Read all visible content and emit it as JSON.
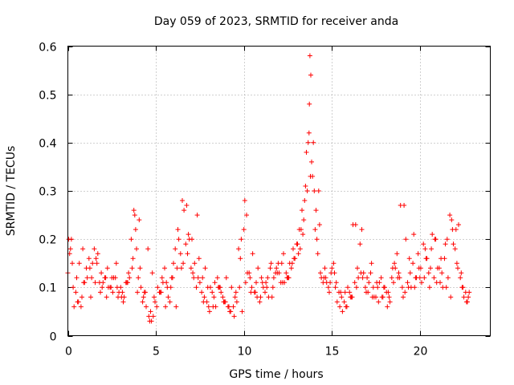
{
  "chart_data": {
    "type": "scatter",
    "title": "Day 059 of 2023, SRMTID for receiver anda",
    "xlabel": "GPS time / hours",
    "ylabel": "SRMTID / TECUs",
    "xlim": [
      0,
      24
    ],
    "ylim": [
      0,
      0.6
    ],
    "xticks": [
      0,
      5,
      10,
      15,
      20
    ],
    "xtick_labels": [
      "0",
      "5",
      "10",
      "15",
      "20"
    ],
    "yticks": [
      0,
      0.1,
      0.2,
      0.3,
      0.4,
      0.5,
      0.6
    ],
    "ytick_labels": [
      "0",
      "0.1",
      "0.2",
      "0.3",
      "0.4",
      "0.5",
      "0.6"
    ],
    "grid": true,
    "marker": "+",
    "color": "#ff0000",
    "series": [
      {
        "name": "SRMTID",
        "x": [
          0.0,
          0.15,
          0.3,
          0.45,
          0.6,
          0.75,
          0.9,
          1.05,
          1.2,
          1.35,
          1.5,
          1.65,
          1.8,
          1.95,
          2.1,
          2.25,
          2.4,
          2.55,
          2.7,
          2.85,
          3.0,
          3.15,
          3.3,
          3.45,
          3.6,
          3.75,
          3.8,
          3.9,
          4.0,
          4.15,
          4.3,
          4.45,
          4.6,
          4.75,
          4.9,
          5.05,
          5.2,
          5.35,
          5.5,
          5.65,
          5.8,
          5.95,
          6.1,
          6.25,
          6.4,
          6.55,
          6.7,
          6.85,
          7.0,
          7.15,
          7.3,
          7.45,
          7.6,
          7.75,
          7.9,
          8.05,
          8.2,
          8.35,
          8.5,
          8.65,
          8.8,
          8.95,
          9.1,
          9.25,
          9.4,
          9.55,
          9.7,
          9.85,
          10.0,
          10.15,
          10.3,
          10.45,
          10.6,
          10.75,
          10.9,
          11.05,
          11.2,
          11.35,
          11.5,
          11.65,
          11.8,
          11.95,
          12.1,
          12.25,
          12.4,
          12.55,
          12.7,
          12.85,
          13.0,
          13.15,
          13.3,
          13.45,
          13.6,
          13.7,
          13.75,
          13.8,
          13.9,
          14.05,
          14.2,
          14.35,
          14.5,
          14.65,
          14.8,
          14.95,
          15.1,
          15.25,
          15.4,
          15.55,
          15.7,
          15.85,
          16.0,
          16.15,
          16.3,
          16.45,
          16.6,
          16.75,
          16.9,
          17.05,
          17.2,
          17.35,
          17.5,
          17.65,
          17.8,
          17.95,
          18.1,
          18.25,
          18.4,
          18.55,
          18.7,
          18.85,
          19.0,
          19.15,
          19.3,
          19.45,
          19.6,
          19.75,
          19.9,
          20.05,
          20.2,
          20.35,
          20.5,
          20.65,
          20.8,
          20.95,
          21.1,
          21.25,
          21.4,
          21.55,
          21.7,
          21.85,
          22.0,
          22.15,
          22.3,
          22.45,
          22.6,
          22.75,
          0.1,
          0.2,
          0.5,
          0.8,
          1.1,
          1.4,
          1.7,
          2.0,
          2.3,
          2.6,
          2.9,
          3.2,
          3.5,
          3.85,
          4.1,
          4.4,
          4.7,
          4.85,
          5.1,
          5.4,
          5.7,
          6.0,
          6.3,
          6.5,
          6.8,
          7.1,
          7.4,
          7.7,
          8.0,
          8.3,
          8.6,
          8.9,
          9.2,
          9.5,
          9.8,
          10.05,
          10.35,
          10.65,
          10.95,
          11.25,
          11.55,
          11.85,
          12.15,
          12.45,
          12.75,
          13.05,
          13.25,
          13.4,
          13.55,
          13.65,
          13.85,
          14.0,
          14.1,
          14.3,
          14.6,
          14.9,
          15.2,
          15.5,
          15.8,
          16.1,
          16.4,
          16.7,
          17.0,
          17.3,
          17.6,
          17.9,
          18.2,
          18.5,
          18.8,
          19.1,
          19.4,
          19.7,
          20.0,
          20.3,
          20.6,
          20.9,
          21.2,
          21.5,
          21.8,
          22.1,
          22.4,
          22.7,
          0.25,
          0.55,
          0.85,
          1.25,
          1.55,
          1.85,
          2.15,
          2.45,
          2.75,
          3.05,
          3.35,
          3.65,
          3.95,
          4.25,
          4.55,
          4.8,
          5.25,
          5.55,
          5.85,
          6.15,
          6.45,
          6.75,
          7.05,
          7.35,
          7.65,
          7.95,
          8.25,
          8.55,
          8.85,
          9.15,
          9.45,
          9.75,
          10.1,
          10.4,
          10.7,
          11.0,
          11.3,
          11.6,
          11.9,
          12.2,
          12.5,
          12.8,
          13.1,
          13.35,
          13.5,
          13.72,
          13.95,
          14.15,
          14.4,
          14.7,
          15.0,
          15.3,
          15.6,
          15.9,
          16.2,
          16.5,
          16.8,
          17.1,
          17.4,
          17.7,
          18.0,
          18.3,
          18.6,
          18.9,
          19.2,
          19.5,
          19.8,
          20.1,
          20.4,
          20.7,
          21.0,
          21.3,
          21.6,
          21.9,
          22.2,
          22.5,
          22.8,
          0.05,
          0.35,
          0.65,
          0.95,
          1.3,
          1.6,
          1.9,
          2.2,
          2.5,
          2.8,
          3.1,
          3.4,
          3.7,
          4.05,
          4.35,
          4.65,
          4.95,
          5.3,
          5.6,
          5.9,
          6.2,
          6.6,
          6.9,
          7.2,
          7.5,
          7.8,
          8.1,
          8.4,
          8.7,
          9.0,
          9.3,
          9.6,
          9.9,
          10.2,
          10.5,
          10.8,
          11.1,
          11.4,
          11.7,
          12.0,
          12.3,
          12.6,
          12.9,
          13.2,
          13.78,
          14.25,
          14.55,
          14.85,
          15.15,
          15.45,
          15.75,
          16.05,
          16.35,
          16.65,
          16.95,
          17.25,
          17.55,
          17.85,
          18.15,
          18.45,
          18.75,
          19.05,
          19.35,
          19.65,
          19.95,
          20.25,
          20.55,
          20.85,
          21.15,
          21.45,
          21.75,
          22.05,
          22.35,
          22.65
        ],
        "y": [
          0.13,
          0.18,
          0.1,
          0.09,
          0.07,
          0.06,
          0.11,
          0.14,
          0.16,
          0.12,
          0.18,
          0.15,
          0.11,
          0.1,
          0.12,
          0.14,
          0.1,
          0.09,
          0.12,
          0.08,
          0.1,
          0.07,
          0.11,
          0.13,
          0.2,
          0.26,
          0.25,
          0.18,
          0.12,
          0.1,
          0.08,
          0.06,
          0.04,
          0.03,
          0.08,
          0.06,
          0.09,
          0.12,
          0.14,
          0.1,
          0.07,
          0.12,
          0.18,
          0.22,
          0.17,
          0.15,
          0.19,
          0.21,
          0.14,
          0.12,
          0.1,
          0.16,
          0.09,
          0.08,
          0.07,
          0.05,
          0.09,
          0.11,
          0.12,
          0.1,
          0.08,
          0.07,
          0.06,
          0.05,
          0.06,
          0.09,
          0.18,
          0.2,
          0.22,
          0.25,
          0.13,
          0.1,
          0.09,
          0.08,
          0.07,
          0.11,
          0.09,
          0.12,
          0.14,
          0.1,
          0.13,
          0.15,
          0.11,
          0.17,
          0.13,
          0.12,
          0.14,
          0.16,
          0.19,
          0.22,
          0.26,
          0.28,
          0.3,
          0.42,
          0.58,
          0.54,
          0.33,
          0.22,
          0.17,
          0.13,
          0.11,
          0.12,
          0.1,
          0.13,
          0.15,
          0.11,
          0.09,
          0.08,
          0.07,
          0.06,
          0.09,
          0.08,
          0.11,
          0.14,
          0.19,
          0.12,
          0.1,
          0.09,
          0.13,
          0.1,
          0.08,
          0.07,
          0.12,
          0.1,
          0.09,
          0.08,
          0.12,
          0.15,
          0.17,
          0.12,
          0.1,
          0.09,
          0.11,
          0.13,
          0.15,
          0.12,
          0.17,
          0.14,
          0.19,
          0.16,
          0.13,
          0.18,
          0.12,
          0.11,
          0.14,
          0.13,
          0.16,
          0.2,
          0.25,
          0.22,
          0.18,
          0.14,
          0.12,
          0.1,
          0.09,
          0.08,
          0.17,
          0.2,
          0.12,
          0.08,
          0.12,
          0.15,
          0.17,
          0.11,
          0.1,
          0.12,
          0.09,
          0.08,
          0.12,
          0.22,
          0.14,
          0.09,
          0.05,
          0.04,
          0.1,
          0.11,
          0.08,
          0.15,
          0.2,
          0.28,
          0.17,
          0.13,
          0.12,
          0.07,
          0.06,
          0.08,
          0.1,
          0.07,
          0.05,
          0.08,
          0.16,
          0.28,
          0.12,
          0.09,
          0.08,
          0.11,
          0.15,
          0.14,
          0.15,
          0.12,
          0.15,
          0.19,
          0.22,
          0.24,
          0.38,
          0.4,
          0.36,
          0.3,
          0.26,
          0.23,
          0.14,
          0.11,
          0.1,
          0.09,
          0.06,
          0.08,
          0.1,
          0.22,
          0.12,
          0.08,
          0.1,
          0.08,
          0.09,
          0.11,
          0.13,
          0.27,
          0.16,
          0.1,
          0.12,
          0.18,
          0.14,
          0.2,
          0.16,
          0.1,
          0.24,
          0.15,
          0.1,
          0.07,
          0.15,
          0.07,
          0.18,
          0.14,
          0.11,
          0.09,
          0.12,
          0.1,
          0.15,
          0.08,
          0.11,
          0.14,
          0.09,
          0.07,
          0.18,
          0.13,
          0.09,
          0.06,
          0.1,
          0.06,
          0.14,
          0.27,
          0.2,
          0.25,
          0.12,
          0.1,
          0.06,
          0.1,
          0.07,
          0.06,
          0.04,
          0.1,
          0.11,
          0.09,
          0.11,
          0.12,
          0.1,
          0.08,
          0.13,
          0.11,
          0.12,
          0.18,
          0.17,
          0.21,
          0.31,
          0.48,
          0.4,
          0.2,
          0.12,
          0.11,
          0.14,
          0.07,
          0.05,
          0.1,
          0.23,
          0.12,
          0.13,
          0.11,
          0.08,
          0.11,
          0.1,
          0.07,
          0.14,
          0.27,
          0.2,
          0.1,
          0.12,
          0.11,
          0.16,
          0.21,
          0.14,
          0.1,
          0.12,
          0.19,
          0.23,
          0.08,
          0.09,
          0.2,
          0.06,
          0.15,
          0.11,
          0.08,
          0.16,
          0.13,
          0.08,
          0.12,
          0.1,
          0.09,
          0.11,
          0.16,
          0.24,
          0.09,
          0.03,
          0.07,
          0.09,
          0.11,
          0.12,
          0.14,
          0.26,
          0.2,
          0.15,
          0.11,
          0.14,
          0.1,
          0.06,
          0.09,
          0.12,
          0.1,
          0.07,
          0.05,
          0.13,
          0.17,
          0.14,
          0.1,
          0.08,
          0.12,
          0.13,
          0.11,
          0.15,
          0.16,
          0.18,
          0.33,
          0.3,
          0.12,
          0.09,
          0.13,
          0.06,
          0.09,
          0.08,
          0.23,
          0.13,
          0.09,
          0.15,
          0.11,
          0.08,
          0.06,
          0.14,
          0.12,
          0.08,
          0.1,
          0.21,
          0.14,
          0.12,
          0.1,
          0.2,
          0.11,
          0.19,
          0.08,
          0.22,
          0.13,
          0.07
        ]
      }
    ]
  }
}
